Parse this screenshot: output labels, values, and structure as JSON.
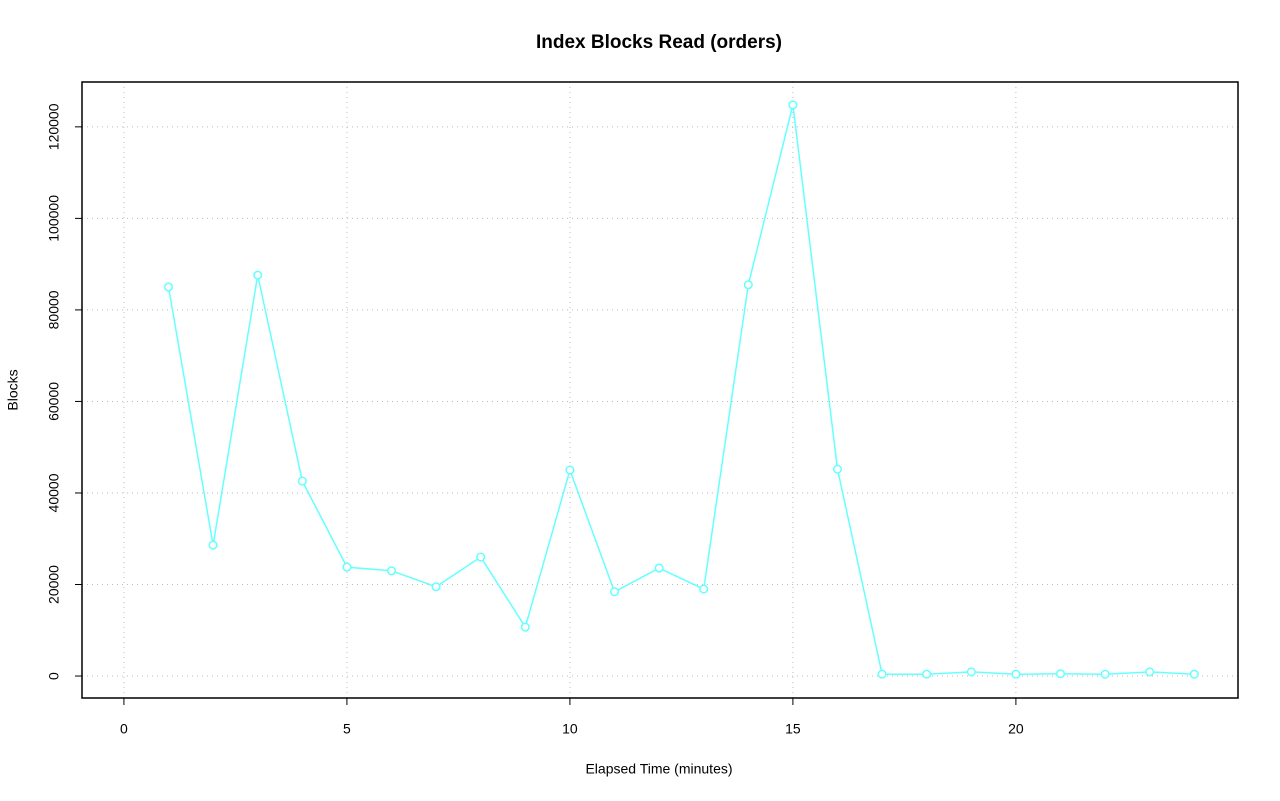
{
  "chart_data": {
    "type": "line",
    "title": "Index Blocks Read (orders)",
    "x_label": "Elapsed Time (minutes)",
    "y_label": "Blocks",
    "x": [
      1,
      2,
      3,
      4,
      5,
      6,
      7,
      8,
      9,
      10,
      11,
      12,
      13,
      14,
      15,
      16,
      17,
      18,
      19,
      20,
      21,
      22,
      23,
      24
    ],
    "series": [
      {
        "name": "orders",
        "color": "#66ffff",
        "values": [
          85000,
          28600,
          87600,
          42600,
          23800,
          23000,
          19500,
          26000,
          10700,
          45000,
          18400,
          23600,
          19000,
          85500,
          124800,
          45200,
          400,
          400,
          900,
          400,
          500,
          400,
          900,
          400
        ]
      }
    ],
    "xlim": [
      -0.94,
      24.98
    ],
    "xticks": [
      0,
      5,
      10,
      15,
      20
    ],
    "ylim": [
      -4800,
      129800
    ],
    "yticks": [
      0,
      20000,
      40000,
      60000,
      80000,
      100000,
      120000
    ],
    "grid": true
  }
}
